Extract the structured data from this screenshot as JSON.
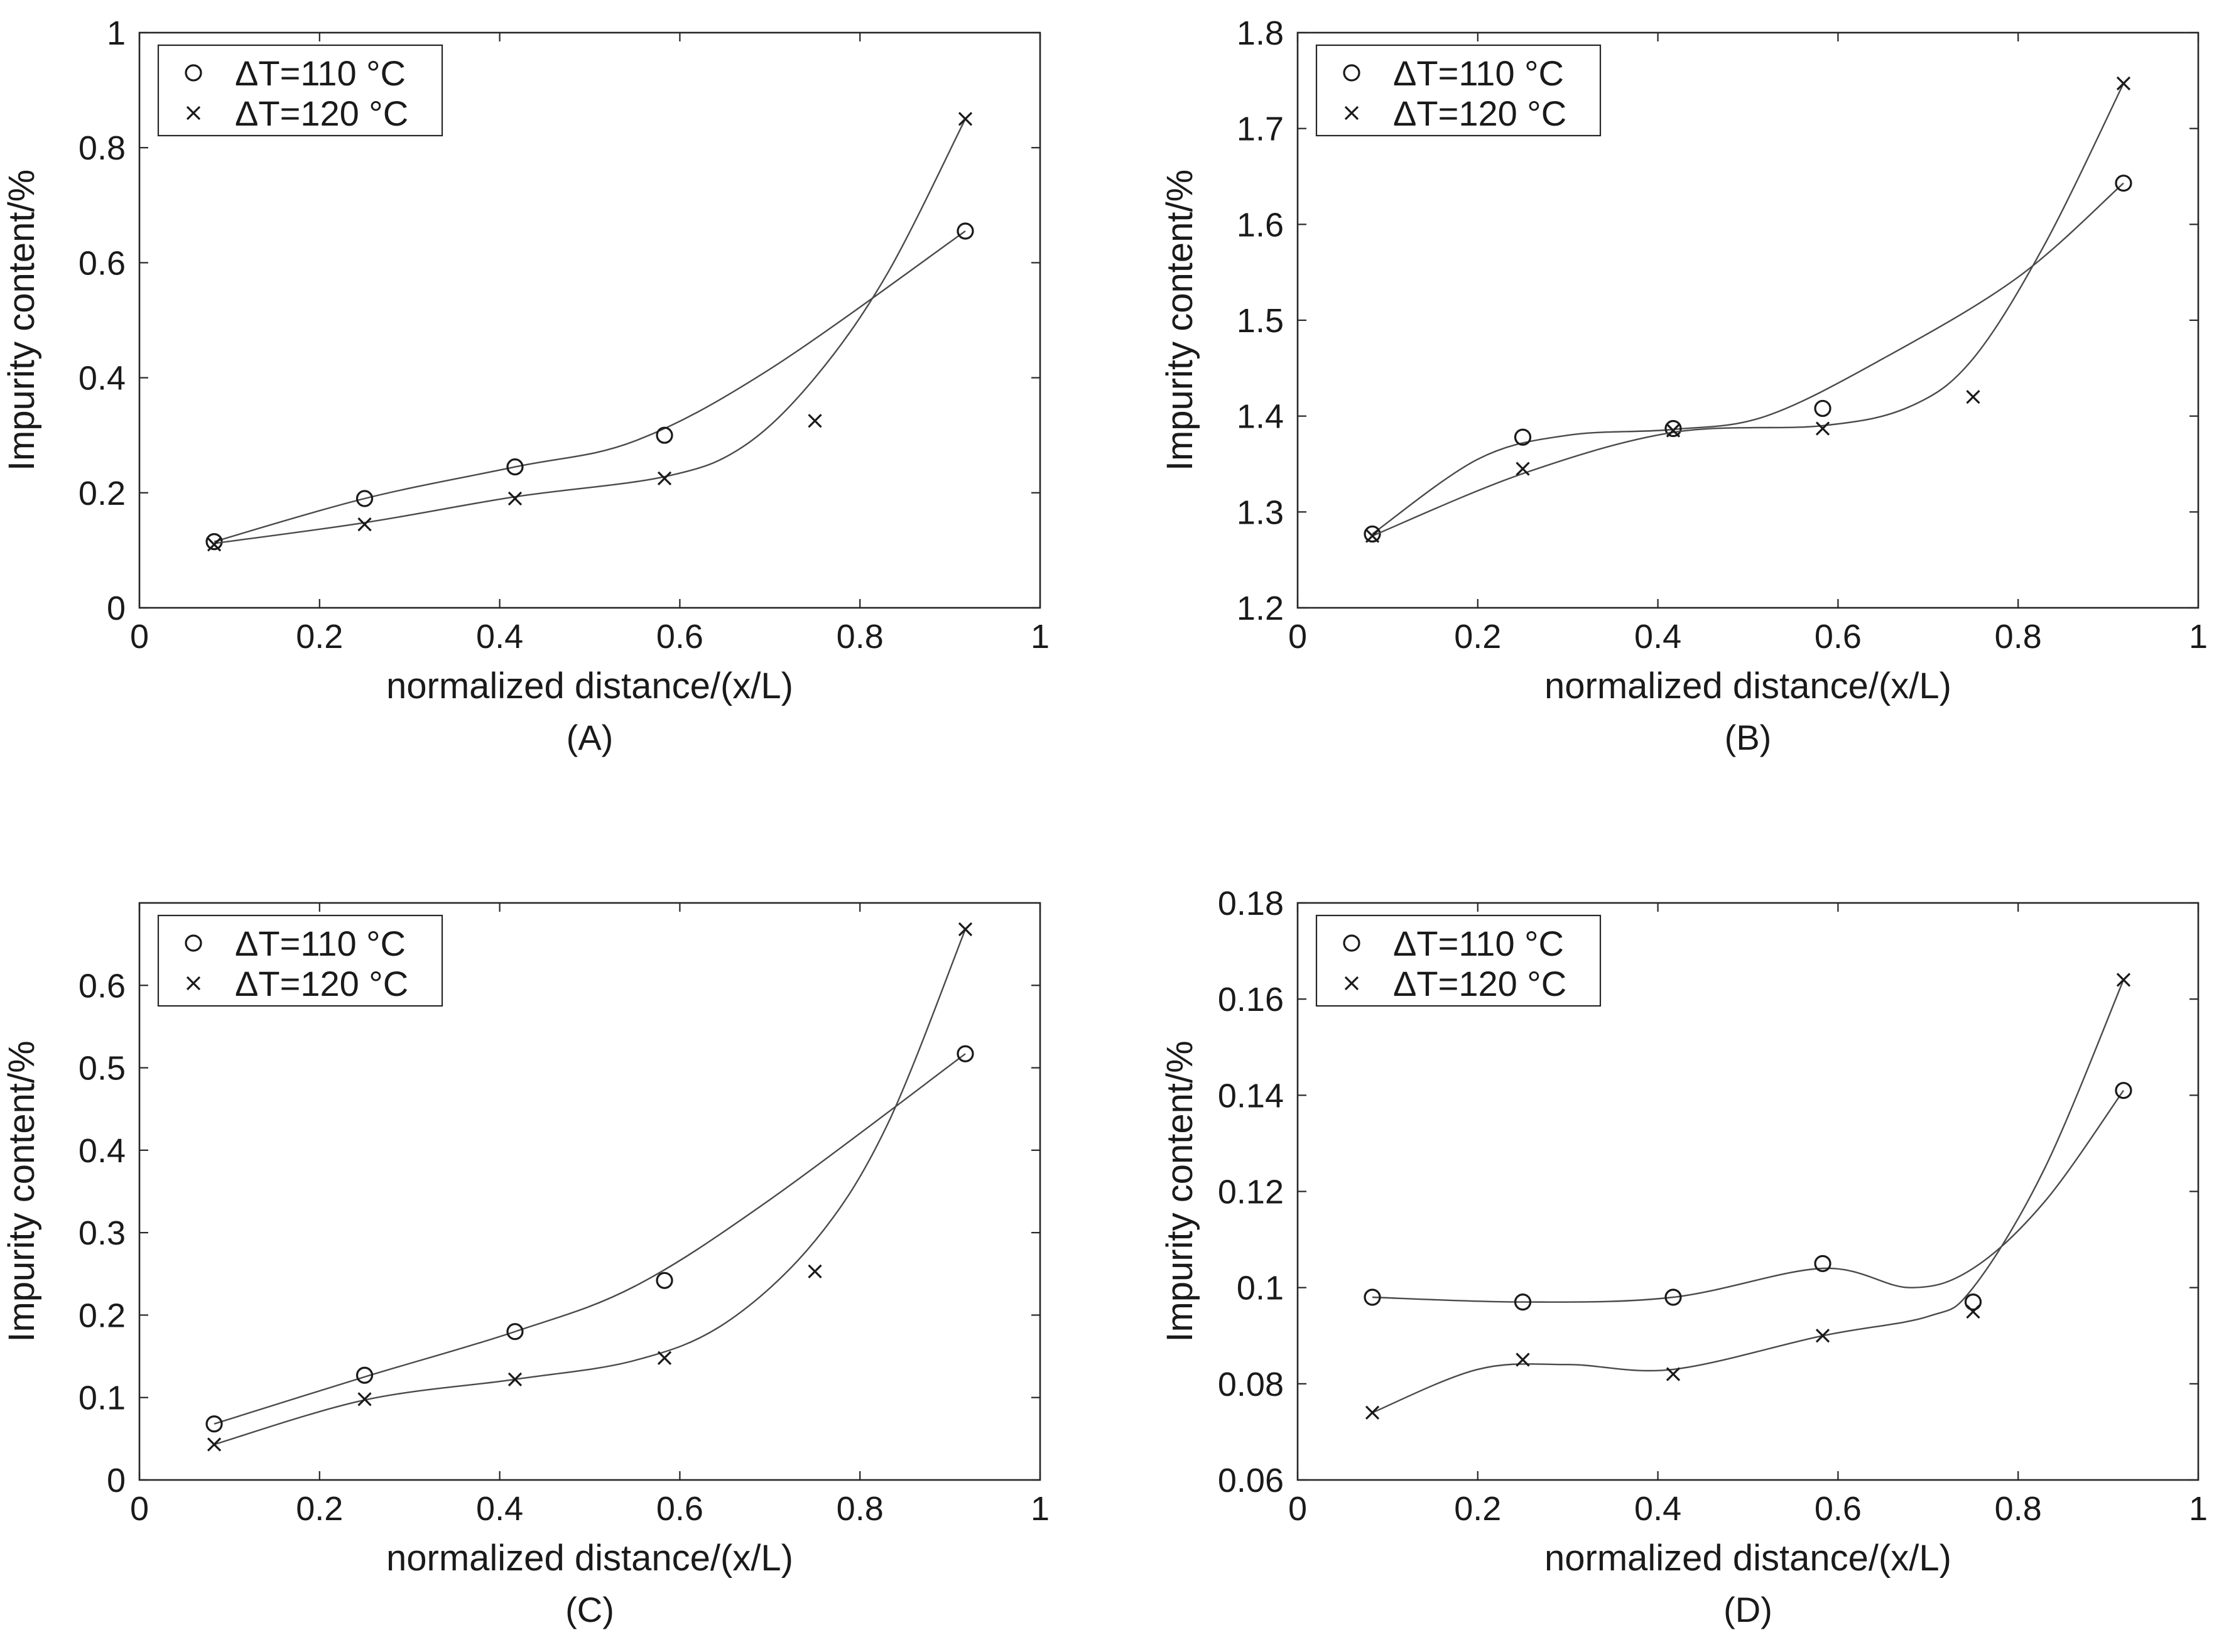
{
  "chart_data": [
    {
      "type": "scatter",
      "panel_label": "(A)",
      "xlabel": "normalized distance/(x/L)",
      "ylabel": "Impurity content/%",
      "xlim": [
        0,
        1
      ],
      "ylim": [
        0,
        1
      ],
      "xticks": [
        0,
        0.2,
        0.4,
        0.6,
        0.8,
        1
      ],
      "xtick_labels": [
        "0",
        "0.2",
        "0.4",
        "0.6",
        "0.8",
        "1"
      ],
      "yticks": [
        0,
        0.2,
        0.4,
        0.6,
        0.8,
        1
      ],
      "ytick_labels": [
        "0",
        "0.2",
        "0.4",
        "0.6",
        "0.8",
        "1"
      ],
      "grid": false,
      "legend_position": "top-left",
      "series": [
        {
          "name": "ΔT=110 °C",
          "marker": "circle",
          "x": [
            0.083,
            0.25,
            0.417,
            0.583,
            0.917
          ],
          "y": [
            0.115,
            0.19,
            0.245,
            0.3,
            0.655
          ],
          "fit": [
            [
              0.083,
              0.115
            ],
            [
              0.25,
              0.19
            ],
            [
              0.417,
              0.245
            ],
            [
              0.55,
              0.29
            ],
            [
              0.7,
              0.415
            ],
            [
              0.917,
              0.655
            ]
          ]
        },
        {
          "name": "ΔT=120 °C",
          "marker": "x",
          "x": [
            0.083,
            0.25,
            0.417,
            0.583,
            0.75,
            0.917
          ],
          "y": [
            0.11,
            0.145,
            0.19,
            0.225,
            0.325,
            0.85
          ],
          "fit": [
            [
              0.083,
              0.112
            ],
            [
              0.25,
              0.148
            ],
            [
              0.417,
              0.193
            ],
            [
              0.583,
              0.228
            ],
            [
              0.67,
              0.28
            ],
            [
              0.75,
              0.4
            ],
            [
              0.83,
              0.58
            ],
            [
              0.917,
              0.85
            ]
          ]
        }
      ]
    },
    {
      "type": "scatter",
      "panel_label": "(B)",
      "xlabel": "normalized distance/(x/L)",
      "ylabel": "Impurity content/%",
      "xlim": [
        0,
        1
      ],
      "ylim": [
        1.2,
        1.8
      ],
      "xticks": [
        0,
        0.2,
        0.4,
        0.6,
        0.8,
        1
      ],
      "xtick_labels": [
        "0",
        "0.2",
        "0.4",
        "0.6",
        "0.8",
        "1"
      ],
      "yticks": [
        1.2,
        1.3,
        1.4,
        1.5,
        1.6,
        1.7,
        1.8
      ],
      "ytick_labels": [
        "1.2",
        "1.3",
        "1.4",
        "1.5",
        "1.6",
        "1.7",
        "1.8"
      ],
      "grid": false,
      "legend_position": "top-left",
      "series": [
        {
          "name": "ΔT=110 °C",
          "marker": "circle",
          "x": [
            0.083,
            0.25,
            0.417,
            0.583,
            0.917
          ],
          "y": [
            1.277,
            1.378,
            1.387,
            1.408,
            1.643
          ],
          "fit": [
            [
              0.083,
              1.277
            ],
            [
              0.2,
              1.355
            ],
            [
              0.3,
              1.38
            ],
            [
              0.417,
              1.386
            ],
            [
              0.52,
              1.4
            ],
            [
              0.65,
              1.46
            ],
            [
              0.8,
              1.545
            ],
            [
              0.917,
              1.643
            ]
          ]
        },
        {
          "name": "ΔT=120 °C",
          "marker": "x",
          "x": [
            0.083,
            0.25,
            0.417,
            0.583,
            0.75,
            0.917
          ],
          "y": [
            1.275,
            1.345,
            1.385,
            1.387,
            1.42,
            1.747
          ],
          "fit": [
            [
              0.083,
              1.275
            ],
            [
              0.25,
              1.34
            ],
            [
              0.417,
              1.383
            ],
            [
              0.583,
              1.39
            ],
            [
              0.68,
              1.41
            ],
            [
              0.75,
              1.46
            ],
            [
              0.83,
              1.58
            ],
            [
              0.917,
              1.747
            ]
          ]
        }
      ]
    },
    {
      "type": "scatter",
      "panel_label": "(C)",
      "xlabel": "normalized distance/(x/L)",
      "ylabel": "Impurity content/%",
      "xlim": [
        0,
        1
      ],
      "ylim": [
        0,
        0.7
      ],
      "xticks": [
        0,
        0.2,
        0.4,
        0.6,
        0.8,
        1
      ],
      "xtick_labels": [
        "0",
        "0.2",
        "0.4",
        "0.6",
        "0.8",
        "1"
      ],
      "yticks": [
        0,
        0.1,
        0.2,
        0.3,
        0.4,
        0.5,
        0.6
      ],
      "ytick_labels": [
        "0",
        "0.1",
        "0.2",
        "0.3",
        "0.4",
        "0.5",
        "0.6"
      ],
      "grid": false,
      "legend_position": "top-left",
      "series": [
        {
          "name": "ΔT=110 °C",
          "marker": "circle",
          "x": [
            0.083,
            0.25,
            0.417,
            0.583,
            0.917
          ],
          "y": [
            0.068,
            0.127,
            0.18,
            0.242,
            0.517
          ],
          "fit": [
            [
              0.083,
              0.068
            ],
            [
              0.25,
              0.125
            ],
            [
              0.417,
              0.18
            ],
            [
              0.55,
              0.235
            ],
            [
              0.7,
              0.34
            ],
            [
              0.917,
              0.517
            ]
          ]
        },
        {
          "name": "ΔT=120 °C",
          "marker": "x",
          "x": [
            0.083,
            0.25,
            0.417,
            0.583,
            0.75,
            0.917
          ],
          "y": [
            0.043,
            0.098,
            0.122,
            0.148,
            0.253,
            0.668
          ],
          "fit": [
            [
              0.083,
              0.043
            ],
            [
              0.25,
              0.097
            ],
            [
              0.417,
              0.122
            ],
            [
              0.55,
              0.145
            ],
            [
              0.65,
              0.19
            ],
            [
              0.75,
              0.29
            ],
            [
              0.83,
              0.43
            ],
            [
              0.917,
              0.668
            ]
          ]
        }
      ]
    },
    {
      "type": "scatter",
      "panel_label": "(D)",
      "xlabel": "normalized distance/(x/L)",
      "ylabel": "Impurity content/%",
      "xlim": [
        0,
        1
      ],
      "ylim": [
        0.06,
        0.18
      ],
      "xticks": [
        0,
        0.2,
        0.4,
        0.6,
        0.8,
        1
      ],
      "xtick_labels": [
        "0",
        "0.2",
        "0.4",
        "0.6",
        "0.8",
        "1"
      ],
      "yticks": [
        0.06,
        0.08,
        0.1,
        0.12,
        0.14,
        0.16,
        0.18
      ],
      "ytick_labels": [
        "0.06",
        "0.08",
        "0.1",
        "0.12",
        "0.14",
        "0.16",
        "0.18"
      ],
      "grid": false,
      "legend_position": "top-left",
      "series": [
        {
          "name": "ΔT=110 °C",
          "marker": "circle",
          "x": [
            0.083,
            0.25,
            0.417,
            0.583,
            0.75,
            0.917
          ],
          "y": [
            0.098,
            0.097,
            0.098,
            0.105,
            0.097,
            0.141
          ],
          "fit": [
            [
              0.083,
              0.098
            ],
            [
              0.25,
              0.097
            ],
            [
              0.417,
              0.098
            ],
            [
              0.583,
              0.104
            ],
            [
              0.68,
              0.1
            ],
            [
              0.75,
              0.104
            ],
            [
              0.83,
              0.118
            ],
            [
              0.917,
              0.141
            ]
          ]
        },
        {
          "name": "ΔT=120 °C",
          "marker": "x",
          "x": [
            0.083,
            0.25,
            0.417,
            0.583,
            0.75,
            0.917
          ],
          "y": [
            0.074,
            0.085,
            0.082,
            0.09,
            0.095,
            0.164
          ],
          "fit": [
            [
              0.083,
              0.074
            ],
            [
              0.2,
              0.083
            ],
            [
              0.3,
              0.084
            ],
            [
              0.417,
              0.083
            ],
            [
              0.583,
              0.09
            ],
            [
              0.7,
              0.094
            ],
            [
              0.75,
              0.1
            ],
            [
              0.83,
              0.125
            ],
            [
              0.917,
              0.164
            ]
          ]
        }
      ]
    }
  ]
}
